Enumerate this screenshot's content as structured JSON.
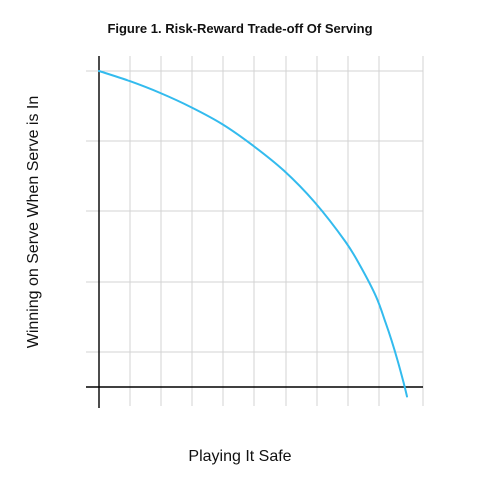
{
  "chart_data": {
    "type": "line",
    "title": "Figure 1. Risk-Reward Trade-off Of Serving",
    "xlabel": "Playing It Safe",
    "ylabel": "Winning on Serve When Serve is In",
    "xlim": [
      0,
      1
    ],
    "ylim": [
      0,
      1
    ],
    "grid": true,
    "x_tick_labels": [],
    "y_tick_labels": [],
    "colors": {
      "curve": "#33bbee",
      "grid": "#d3d3d3",
      "axis": "#000000"
    },
    "series": [
      {
        "x": [
          0.0,
          0.1,
          0.2,
          0.3,
          0.4,
          0.5,
          0.6,
          0.7,
          0.8,
          0.85,
          0.9,
          0.93,
          0.95,
          0.97,
          0.99,
          1.0
        ],
        "y": [
          1.0,
          0.968,
          0.93,
          0.885,
          0.832,
          0.764,
          0.685,
          0.585,
          0.46,
          0.38,
          0.285,
          0.205,
          0.147,
          0.082,
          0.01,
          -0.03
        ]
      }
    ]
  }
}
